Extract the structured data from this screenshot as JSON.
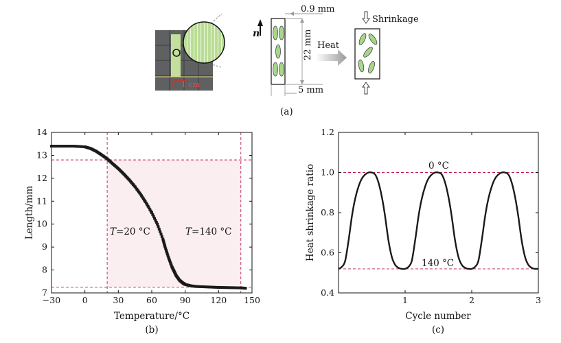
{
  "panel_a": {
    "photo_scale": "1 cm",
    "label_n": "n",
    "dim_top": "0.9 mm",
    "dim_height": "22 mm",
    "dim_bottom": "5 mm",
    "heat_label": "Heat",
    "shrinkage_label": "Shrinkage",
    "caption": "(a)"
  },
  "panel_b": {
    "caption": "(b)"
  },
  "panel_c": {
    "caption": "(c)"
  },
  "colors": {
    "curve": "#1a1a1a",
    "guide": "#c2185b",
    "shade": "#fbeef0",
    "ellipse": "#a8d68a"
  },
  "chart_data": [
    {
      "type": "line",
      "xlabel": "Temperature/°C",
      "ylabel": "Length/mm",
      "xlim": [
        -30,
        150
      ],
      "ylim": [
        7,
        14
      ],
      "xticks": [
        -30,
        0,
        30,
        60,
        90,
        120,
        150
      ],
      "yticks": [
        7,
        8,
        9,
        10,
        11,
        12,
        13,
        14
      ],
      "x": [
        -30,
        -20,
        -10,
        0,
        5,
        10,
        15,
        20,
        25,
        30,
        35,
        40,
        45,
        50,
        55,
        60,
        65,
        70,
        72,
        75,
        78,
        80,
        82,
        85,
        88,
        90,
        95,
        100,
        110,
        120,
        130,
        140,
        145
      ],
      "y": [
        13.4,
        13.4,
        13.4,
        13.37,
        13.3,
        13.18,
        13.02,
        12.85,
        12.63,
        12.42,
        12.18,
        11.92,
        11.63,
        11.3,
        10.92,
        10.5,
        10.0,
        9.35,
        9.0,
        8.55,
        8.15,
        7.95,
        7.75,
        7.55,
        7.43,
        7.37,
        7.31,
        7.28,
        7.26,
        7.24,
        7.23,
        7.22,
        7.2
      ],
      "annotations": [
        {
          "text": "T = 20 °C",
          "x": 20
        },
        {
          "text": "T = 140 °C",
          "x": 140
        }
      ],
      "guides": {
        "vertical_x": [
          20,
          140
        ],
        "horizontal_y": [
          12.8,
          7.25
        ]
      },
      "grid": false
    },
    {
      "type": "line",
      "xlabel": "Cycle number",
      "ylabel": "Heat shrinkage ratio",
      "xlim": [
        0,
        3
      ],
      "ylim": [
        0.4,
        1.2
      ],
      "xticks": [
        1,
        2,
        3
      ],
      "yticks": [
        0.4,
        0.6,
        0.8,
        1.0,
        1.2
      ],
      "annotations": [
        {
          "text": "0 °C",
          "y": 1.0
        },
        {
          "text": "140 °C",
          "y": 0.52
        }
      ],
      "guides": {
        "horizontal_y": [
          1.0,
          0.52
        ]
      },
      "x": [
        0,
        0.05,
        0.1,
        0.15,
        0.2,
        0.25,
        0.3,
        0.35,
        0.4,
        0.45,
        0.5,
        0.55,
        0.6,
        0.65,
        0.7,
        0.75,
        0.8,
        0.85,
        0.9,
        0.95,
        1.0,
        1.05,
        1.1,
        1.15,
        1.2,
        1.25,
        1.3,
        1.35,
        1.4,
        1.45,
        1.5,
        1.55,
        1.6,
        1.65,
        1.7,
        1.75,
        1.8,
        1.85,
        1.9,
        1.95,
        2.0,
        2.05,
        2.1,
        2.15,
        2.2,
        2.25,
        2.3,
        2.35,
        2.4,
        2.45,
        2.5,
        2.55,
        2.6,
        2.65,
        2.7,
        2.75,
        2.8,
        2.85,
        2.9,
        2.95,
        3.0
      ],
      "y": [
        0.52,
        0.53,
        0.56,
        0.66,
        0.78,
        0.87,
        0.93,
        0.97,
        0.99,
        1.0,
        1.0,
        0.99,
        0.95,
        0.88,
        0.78,
        0.66,
        0.58,
        0.54,
        0.525,
        0.52,
        0.52,
        0.53,
        0.56,
        0.66,
        0.78,
        0.87,
        0.93,
        0.97,
        0.99,
        1.0,
        1.0,
        0.99,
        0.95,
        0.88,
        0.78,
        0.66,
        0.58,
        0.54,
        0.525,
        0.52,
        0.52,
        0.53,
        0.56,
        0.66,
        0.78,
        0.87,
        0.93,
        0.97,
        0.99,
        1.0,
        1.0,
        0.99,
        0.95,
        0.88,
        0.78,
        0.66,
        0.58,
        0.54,
        0.525,
        0.52,
        0.52
      ],
      "grid": false
    }
  ]
}
